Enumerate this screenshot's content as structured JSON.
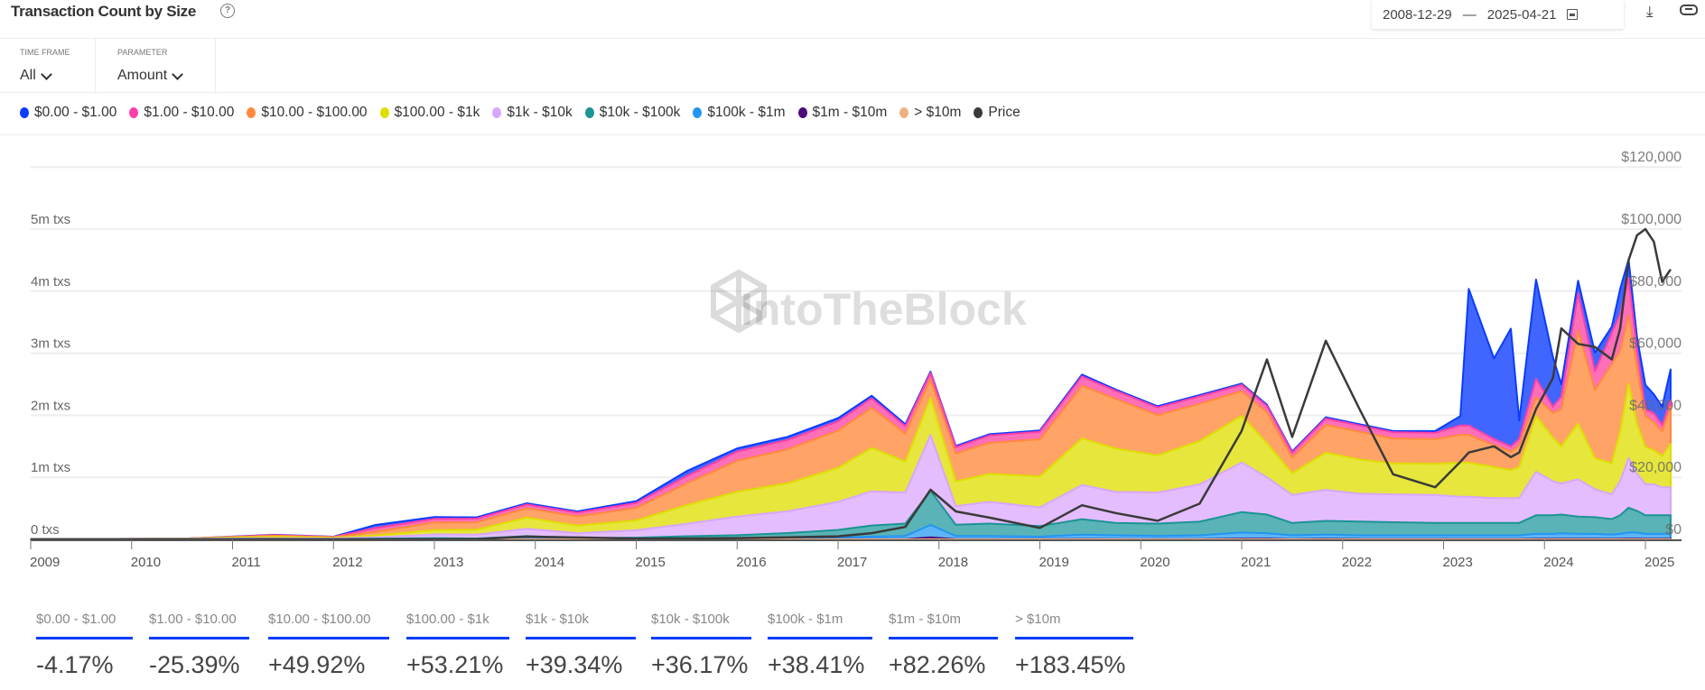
{
  "header": {
    "title": "Transaction Count by Size",
    "help_icon": "question-circle-icon",
    "date_from": "2008-12-29",
    "date_sep": "—",
    "date_to": "2025-04-21",
    "calendar_icon": "calendar-icon",
    "download_icon": "download-icon",
    "link_icon": "link-icon"
  },
  "filters": [
    {
      "label": "TIME FRAME",
      "value": "All"
    },
    {
      "label": "PARAMETER",
      "value": "Amount"
    }
  ],
  "watermark": "IntoTheBlock",
  "chart_data": {
    "type": "area",
    "stacked": true,
    "title": "Transaction Count by Size",
    "legend_position": "top-left",
    "grid": true,
    "y_left": {
      "ticks": [
        "0 txs",
        "1m txs",
        "2m txs",
        "3m txs",
        "4m txs",
        "5m txs"
      ],
      "range": [
        0,
        6
      ],
      "unit": "m txs"
    },
    "y_right": {
      "ticks": [
        "$0",
        "$20,000",
        "$40,000",
        "$60,000",
        "$80,000",
        "$100,000",
        "$120,000"
      ],
      "range": [
        0,
        120000
      ]
    },
    "x_ticks": [
      "2009",
      "2010",
      "2011",
      "2012",
      "2013",
      "2014",
      "2015",
      "2016",
      "2017",
      "2018",
      "2019",
      "2020",
      "2021",
      "2022",
      "2023",
      "2024",
      "2025"
    ],
    "x_range": [
      "2008-12-29",
      "2025-04-21"
    ],
    "series": [
      {
        "name": "$0.00 - $1.00",
        "color": "#0a3cff",
        "fill": "#4166ff"
      },
      {
        "name": "$1.00 - $10.00",
        "color": "#ff3fa8",
        "fill": "#ff6fb8"
      },
      {
        "name": "$10.00 - $100.00",
        "color": "#ff8a3d",
        "fill": "#ffa366"
      },
      {
        "name": "$100.00 - $1k",
        "color": "#dede00",
        "fill": "#e6e63c"
      },
      {
        "name": "$1k - $10k",
        "color": "#d8a6ff",
        "fill": "#e4bdff"
      },
      {
        "name": "$10k - $100k",
        "color": "#1b9494",
        "fill": "#5ab3b6"
      },
      {
        "name": "$100k - $1m",
        "color": "#2196f3",
        "fill": "#5db4f5"
      },
      {
        "name": "$1m - $10m",
        "color": "#4a0a7a",
        "fill": "#6a2a9a"
      },
      {
        "name": "> $10m",
        "color": "#f0b080",
        "fill": "#f0b080"
      },
      {
        "name": "Price",
        "color": "#3a3a3a",
        "axis": "right"
      }
    ],
    "dates": [
      "2009-01",
      "2010-07",
      "2011-06",
      "2012-01",
      "2012-06",
      "2013-01",
      "2013-06",
      "2013-12",
      "2014-06",
      "2015-01",
      "2015-07",
      "2016-01",
      "2016-07",
      "2017-01",
      "2017-05",
      "2017-09",
      "2017-12",
      "2018-03",
      "2018-07",
      "2019-01",
      "2019-06",
      "2019-10",
      "2020-03",
      "2020-08",
      "2021-01",
      "2021-04",
      "2021-07",
      "2021-11",
      "2022-03",
      "2022-07",
      "2022-12",
      "2023-03",
      "2023-04",
      "2023-07",
      "2023-09",
      "2023-10",
      "2023-12",
      "2024-02",
      "2024-03",
      "2024-05",
      "2024-07",
      "2024-09",
      "2024-10",
      "2024-11",
      "2024-12",
      "2025-01",
      "2025-02",
      "2025-03",
      "2025-04"
    ],
    "values_m_txs": [
      [
        0,
        0,
        0,
        0,
        0,
        0,
        0,
        0,
        0.005
      ],
      [
        0,
        0,
        0,
        0.002,
        0.002,
        0.002,
        0.001,
        0,
        0.003
      ],
      [
        0.005,
        0.01,
        0.02,
        0.02,
        0.01,
        0.005,
        0.002,
        0,
        0.002
      ],
      [
        0.003,
        0.005,
        0.01,
        0.01,
        0.01,
        0.003,
        0.001,
        0,
        0.001
      ],
      [
        0.05,
        0.06,
        0.06,
        0.03,
        0.02,
        0.01,
        0.003,
        0,
        0
      ],
      [
        0.03,
        0.06,
        0.12,
        0.07,
        0.06,
        0.015,
        0.004,
        0.001,
        0
      ],
      [
        0.02,
        0.06,
        0.12,
        0.08,
        0.06,
        0.01,
        0.004,
        0.001,
        0
      ],
      [
        0.02,
        0.06,
        0.15,
        0.18,
        0.12,
        0.04,
        0.01,
        0.002,
        0
      ],
      [
        0.02,
        0.06,
        0.15,
        0.12,
        0.08,
        0.015,
        0.005,
        0.001,
        0
      ],
      [
        0.03,
        0.08,
        0.2,
        0.16,
        0.12,
        0.02,
        0.006,
        0.001,
        0
      ],
      [
        0.08,
        0.12,
        0.35,
        0.3,
        0.2,
        0.04,
        0.01,
        0.001,
        0
      ],
      [
        0.05,
        0.15,
        0.5,
        0.4,
        0.3,
        0.05,
        0.015,
        0.002,
        0
      ],
      [
        0.05,
        0.15,
        0.55,
        0.45,
        0.35,
        0.08,
        0.02,
        0.002,
        0
      ],
      [
        0.05,
        0.15,
        0.6,
        0.55,
        0.45,
        0.12,
        0.03,
        0.003,
        0
      ],
      [
        0.04,
        0.15,
        0.65,
        0.7,
        0.55,
        0.18,
        0.04,
        0.004,
        0
      ],
      [
        0.03,
        0.12,
        0.45,
        0.5,
        0.5,
        0.2,
        0.05,
        0.005,
        0
      ],
      [
        0.02,
        0.1,
        0.3,
        0.6,
        0.9,
        0.55,
        0.2,
        0.03,
        0.002
      ],
      [
        0.02,
        0.1,
        0.45,
        0.4,
        0.3,
        0.18,
        0.05,
        0.005,
        0
      ],
      [
        0.02,
        0.12,
        0.5,
        0.45,
        0.35,
        0.2,
        0.05,
        0.005,
        0
      ],
      [
        0.02,
        0.12,
        0.6,
        0.5,
        0.3,
        0.17,
        0.04,
        0.004,
        0
      ],
      [
        0.03,
        0.15,
        0.85,
        0.75,
        0.55,
        0.25,
        0.07,
        0.006,
        0
      ],
      [
        0.02,
        0.13,
        0.8,
        0.7,
        0.5,
        0.2,
        0.06,
        0.005,
        0
      ],
      [
        0.02,
        0.12,
        0.65,
        0.6,
        0.5,
        0.2,
        0.05,
        0.005,
        0
      ],
      [
        0.02,
        0.12,
        0.6,
        0.7,
        0.6,
        0.22,
        0.06,
        0.005,
        0
      ],
      [
        0.02,
        0.1,
        0.4,
        0.75,
        0.8,
        0.33,
        0.1,
        0.01,
        0
      ],
      [
        0.02,
        0.1,
        0.5,
        0.55,
        0.6,
        0.3,
        0.09,
        0.01,
        0
      ],
      [
        0.02,
        0.08,
        0.25,
        0.35,
        0.45,
        0.2,
        0.06,
        0.005,
        0
      ],
      [
        0.02,
        0.1,
        0.45,
        0.6,
        0.5,
        0.22,
        0.07,
        0.008,
        0
      ],
      [
        0.02,
        0.1,
        0.45,
        0.55,
        0.45,
        0.22,
        0.06,
        0.006,
        0
      ],
      [
        0.02,
        0.1,
        0.4,
        0.5,
        0.45,
        0.21,
        0.06,
        0.006,
        0
      ],
      [
        0.03,
        0.1,
        0.4,
        0.5,
        0.45,
        0.2,
        0.06,
        0.006,
        0
      ],
      [
        0.15,
        0.15,
        0.45,
        0.55,
        0.42,
        0.2,
        0.06,
        0.006,
        0
      ],
      [
        2.2,
        0.15,
        0.45,
        0.55,
        0.42,
        0.2,
        0.06,
        0.006,
        0
      ],
      [
        1.3,
        0.1,
        0.35,
        0.5,
        0.4,
        0.2,
        0.06,
        0.006,
        0
      ],
      [
        1.9,
        0.08,
        0.3,
        0.45,
        0.4,
        0.2,
        0.06,
        0.006,
        0
      ],
      [
        0.3,
        0.1,
        0.35,
        0.5,
        0.4,
        0.2,
        0.06,
        0.006,
        0
      ],
      [
        1.6,
        0.3,
        0.3,
        0.9,
        0.7,
        0.3,
        0.08,
        0.008,
        0
      ],
      [
        0.8,
        0.1,
        0.4,
        0.7,
        0.55,
        0.3,
        0.08,
        0.008,
        0
      ],
      [
        0.2,
        0.2,
        0.6,
        0.6,
        0.5,
        0.3,
        0.09,
        0.009,
        0
      ],
      [
        0.2,
        0.6,
        1.5,
        0.9,
        0.6,
        0.28,
        0.08,
        0.008,
        0
      ],
      [
        0.3,
        0.3,
        1.1,
        0.5,
        0.45,
        0.27,
        0.08,
        0.008,
        0
      ],
      [
        0.1,
        0.5,
        1.6,
        0.5,
        0.4,
        0.25,
        0.07,
        0.007,
        0
      ],
      [
        0.4,
        0.6,
        1.3,
        0.8,
        0.55,
        0.3,
        0.08,
        0.008,
        0
      ],
      [
        0.3,
        0.6,
        1.1,
        1.2,
        0.8,
        0.4,
        0.1,
        0.01,
        0
      ],
      [
        0.2,
        0.3,
        0.9,
        0.8,
        0.6,
        0.35,
        0.1,
        0.01,
        0
      ],
      [
        0.4,
        0.1,
        0.5,
        0.6,
        0.5,
        0.3,
        0.08,
        0.008,
        0
      ],
      [
        0.3,
        0.15,
        0.45,
        0.55,
        0.5,
        0.3,
        0.08,
        0.008,
        0
      ],
      [
        0.3,
        0.1,
        0.4,
        0.5,
        0.45,
        0.3,
        0.08,
        0.008,
        0
      ],
      [
        0.5,
        0.1,
        0.6,
        0.7,
        0.45,
        0.3,
        0.08,
        0.008,
        0
      ]
    ],
    "price_usd": [
      0,
      0.1,
      15,
      6,
      6,
      15,
      100,
      900,
      600,
      250,
      280,
      420,
      650,
      1000,
      2000,
      4000,
      16000,
      9000,
      7000,
      3700,
      11000,
      8500,
      6000,
      11500,
      35000,
      58000,
      33000,
      64000,
      42000,
      21000,
      16800,
      25000,
      28000,
      30000,
      26500,
      28000,
      42000,
      52000,
      68000,
      63000,
      62000,
      58000,
      68000,
      90000,
      98000,
      100000,
      96000,
      83000,
      87000
    ]
  },
  "stats": [
    {
      "label": "$0.00 - $1.00",
      "value": "-4.17%"
    },
    {
      "label": "$1.00 - $10.00",
      "value": "-25.39%"
    },
    {
      "label": "$10.00 - $100.00",
      "value": "+49.92%"
    },
    {
      "label": "$100.00 - $1k",
      "value": "+53.21%"
    },
    {
      "label": "$1k - $10k",
      "value": "+39.34%"
    },
    {
      "label": "$10k - $100k",
      "value": "+36.17%"
    },
    {
      "label": "$100k - $1m",
      "value": "+38.41%"
    },
    {
      "label": "$1m - $10m",
      "value": "+82.26%"
    },
    {
      "label": "> $10m",
      "value": "+183.45%"
    }
  ],
  "stats_accent": "#0a3cff"
}
